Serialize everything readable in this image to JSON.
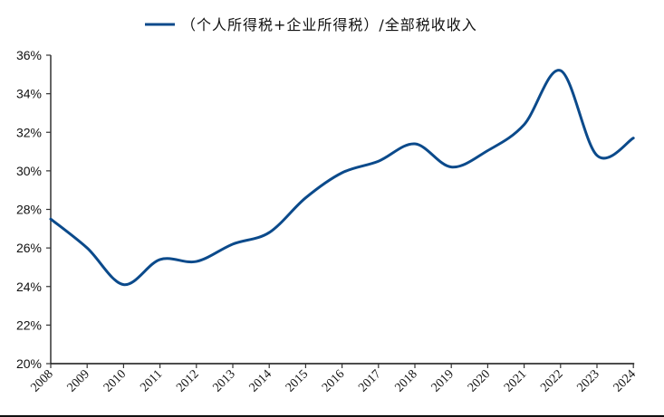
{
  "chart_data": {
    "type": "line",
    "title": "",
    "xlabel": "",
    "ylabel": "",
    "categories": [
      "2008",
      "2009",
      "2010",
      "2011",
      "2012",
      "2013",
      "2014",
      "2015",
      "2016",
      "2017",
      "2018",
      "2019",
      "2020",
      "2021",
      "2022",
      "2023",
      "2024"
    ],
    "series": [
      {
        "name": "（个人所得税+企业所得税）/全部税收收入",
        "color": "#0b4a8b",
        "values": [
          27.5,
          26.0,
          24.1,
          25.4,
          25.3,
          26.2,
          26.8,
          28.6,
          29.9,
          30.5,
          31.4,
          30.2,
          31.05,
          32.4,
          35.2,
          30.8,
          31.7
        ]
      }
    ],
    "ylim": [
      20,
      36
    ],
    "yticks": [
      20,
      22,
      24,
      26,
      28,
      30,
      32,
      34,
      36
    ],
    "ytick_labels": [
      "20%",
      "22%",
      "24%",
      "26%",
      "28%",
      "30%",
      "32%",
      "34%",
      "36%"
    ],
    "grid": false,
    "smooth": true,
    "legend_position": "top"
  },
  "legend": {
    "label": "（个人所得税+企业所得税）/全部税收收入"
  }
}
